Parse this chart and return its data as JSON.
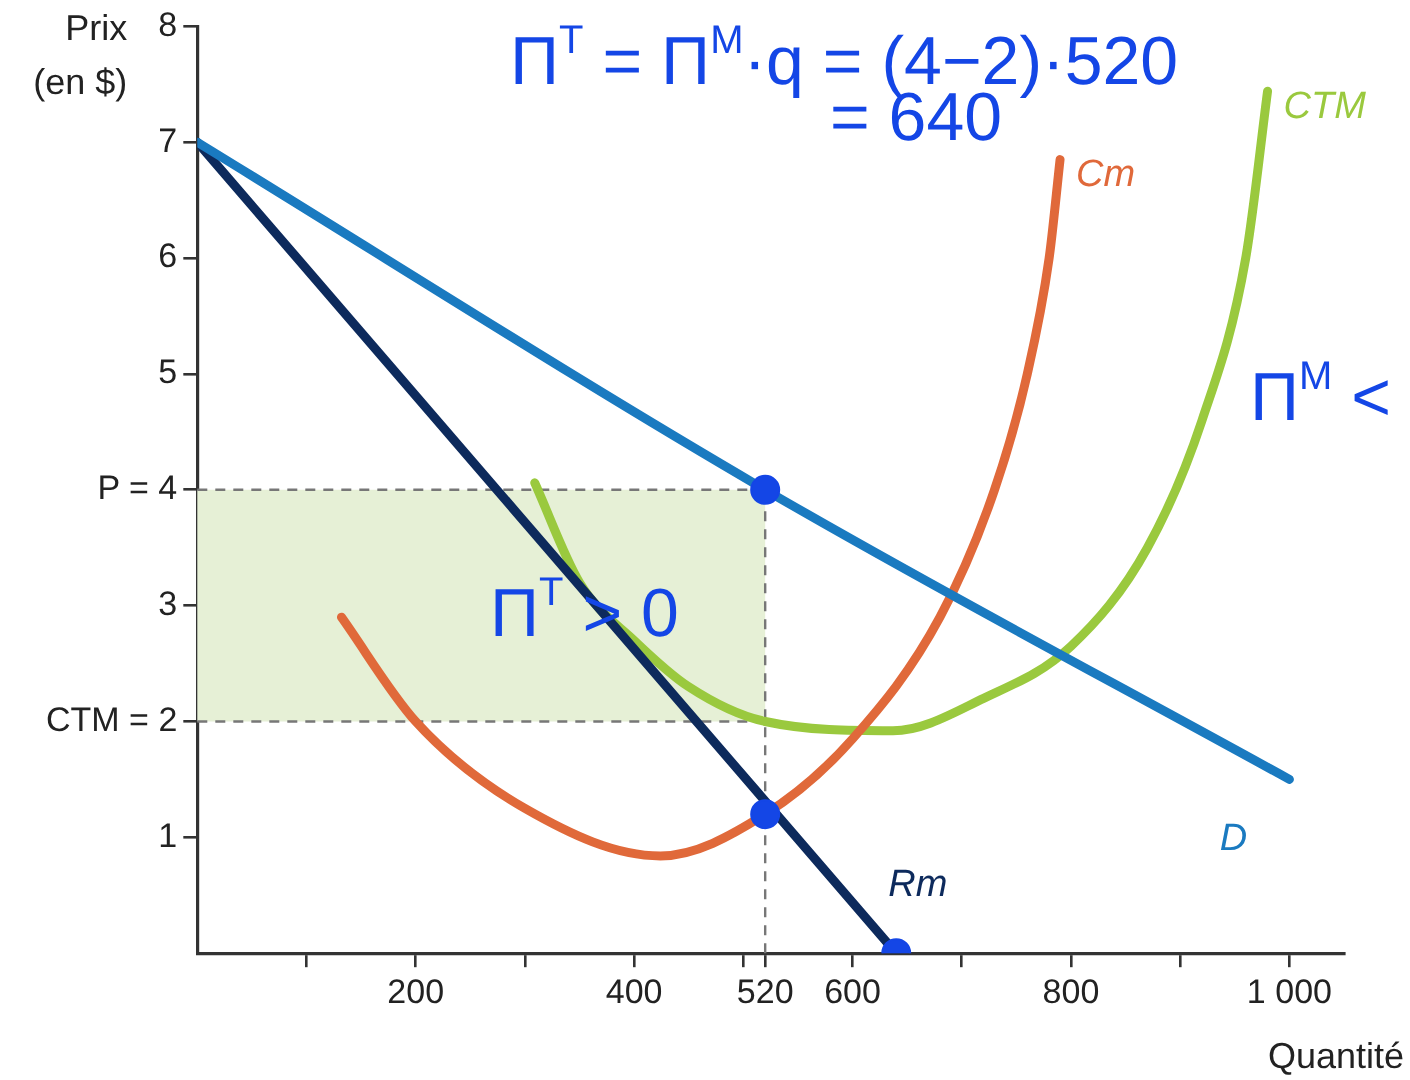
{
  "chart_data": {
    "type": "line",
    "xlabel": "Quantité",
    "ylabel": "Prix (en $)",
    "xlim": [
      0,
      1050
    ],
    "ylim": [
      0,
      8
    ],
    "xticks": [
      {
        "value": 100,
        "label": null
      },
      200,
      {
        "value": 300,
        "label": null
      },
      400,
      {
        "value": 500,
        "label": null
      },
      520,
      600,
      {
        "value": 700,
        "label": null
      },
      800,
      {
        "value": 900,
        "label": null
      },
      {
        "value": 1000,
        "label": "1 000"
      }
    ],
    "yticks": [
      1,
      {
        "value": 2,
        "label": "CTM = 2"
      },
      3,
      {
        "value": 4,
        "label": "P = 4"
      },
      5,
      6,
      7,
      8
    ],
    "grid": false,
    "legend": false,
    "marker": "none",
    "line_style": "solid",
    "series": [
      {
        "name": "D",
        "color": "#1a7ac0",
        "x": [
          0,
          520,
          1000
        ],
        "values": [
          7,
          4,
          1.5
        ]
      },
      {
        "name": "Rm",
        "color": "#0d2a5c",
        "x": [
          0,
          640
        ],
        "values": [
          7,
          0
        ]
      },
      {
        "name": "Cm",
        "color": "#e0693a",
        "x": [
          132,
          200,
          300,
          424,
          520,
          600,
          680,
          730,
          760,
          780,
          790
        ],
        "values": [
          2.9,
          2.0,
          1.25,
          0.84,
          1.2,
          1.85,
          2.9,
          4.0,
          5.0,
          6.0,
          6.85
        ]
      },
      {
        "name": "CTM",
        "color": "#9ac93e",
        "x": [
          309,
          350,
          400,
          450,
          520,
          637,
          720,
          800,
          870,
          920,
          960,
          980
        ],
        "values": [
          4.06,
          3.2,
          2.7,
          2.3,
          2.0,
          1.92,
          2.2,
          2.65,
          3.5,
          4.6,
          6.0,
          7.44
        ]
      },
      {
        "type": "scatter",
        "color": "#1446e6",
        "marker": "circle",
        "x": [
          520,
          520,
          640
        ],
        "values": [
          4,
          1.2,
          0
        ]
      }
    ],
    "ref_lines": [
      {
        "axis": "y",
        "value": 4,
        "color": "#777777",
        "line_style": "dashed"
      },
      {
        "axis": "y",
        "value": 2,
        "color": "#777777",
        "line_style": "dashed"
      },
      {
        "axis": "x",
        "value": 520,
        "color": "#777777",
        "line_style": "dashed"
      }
    ],
    "bands": [
      {
        "axis": "y",
        "from": 2,
        "to": 4,
        "color": "#e6f0d6"
      }
    ],
    "annotations": [
      "Π$^{T}$ = Π$^{M}$·q = (4−2)·520",
      "= 640",
      "Π$^{T}$ > 0",
      "Π$^{M}$ <"
    ]
  }
}
